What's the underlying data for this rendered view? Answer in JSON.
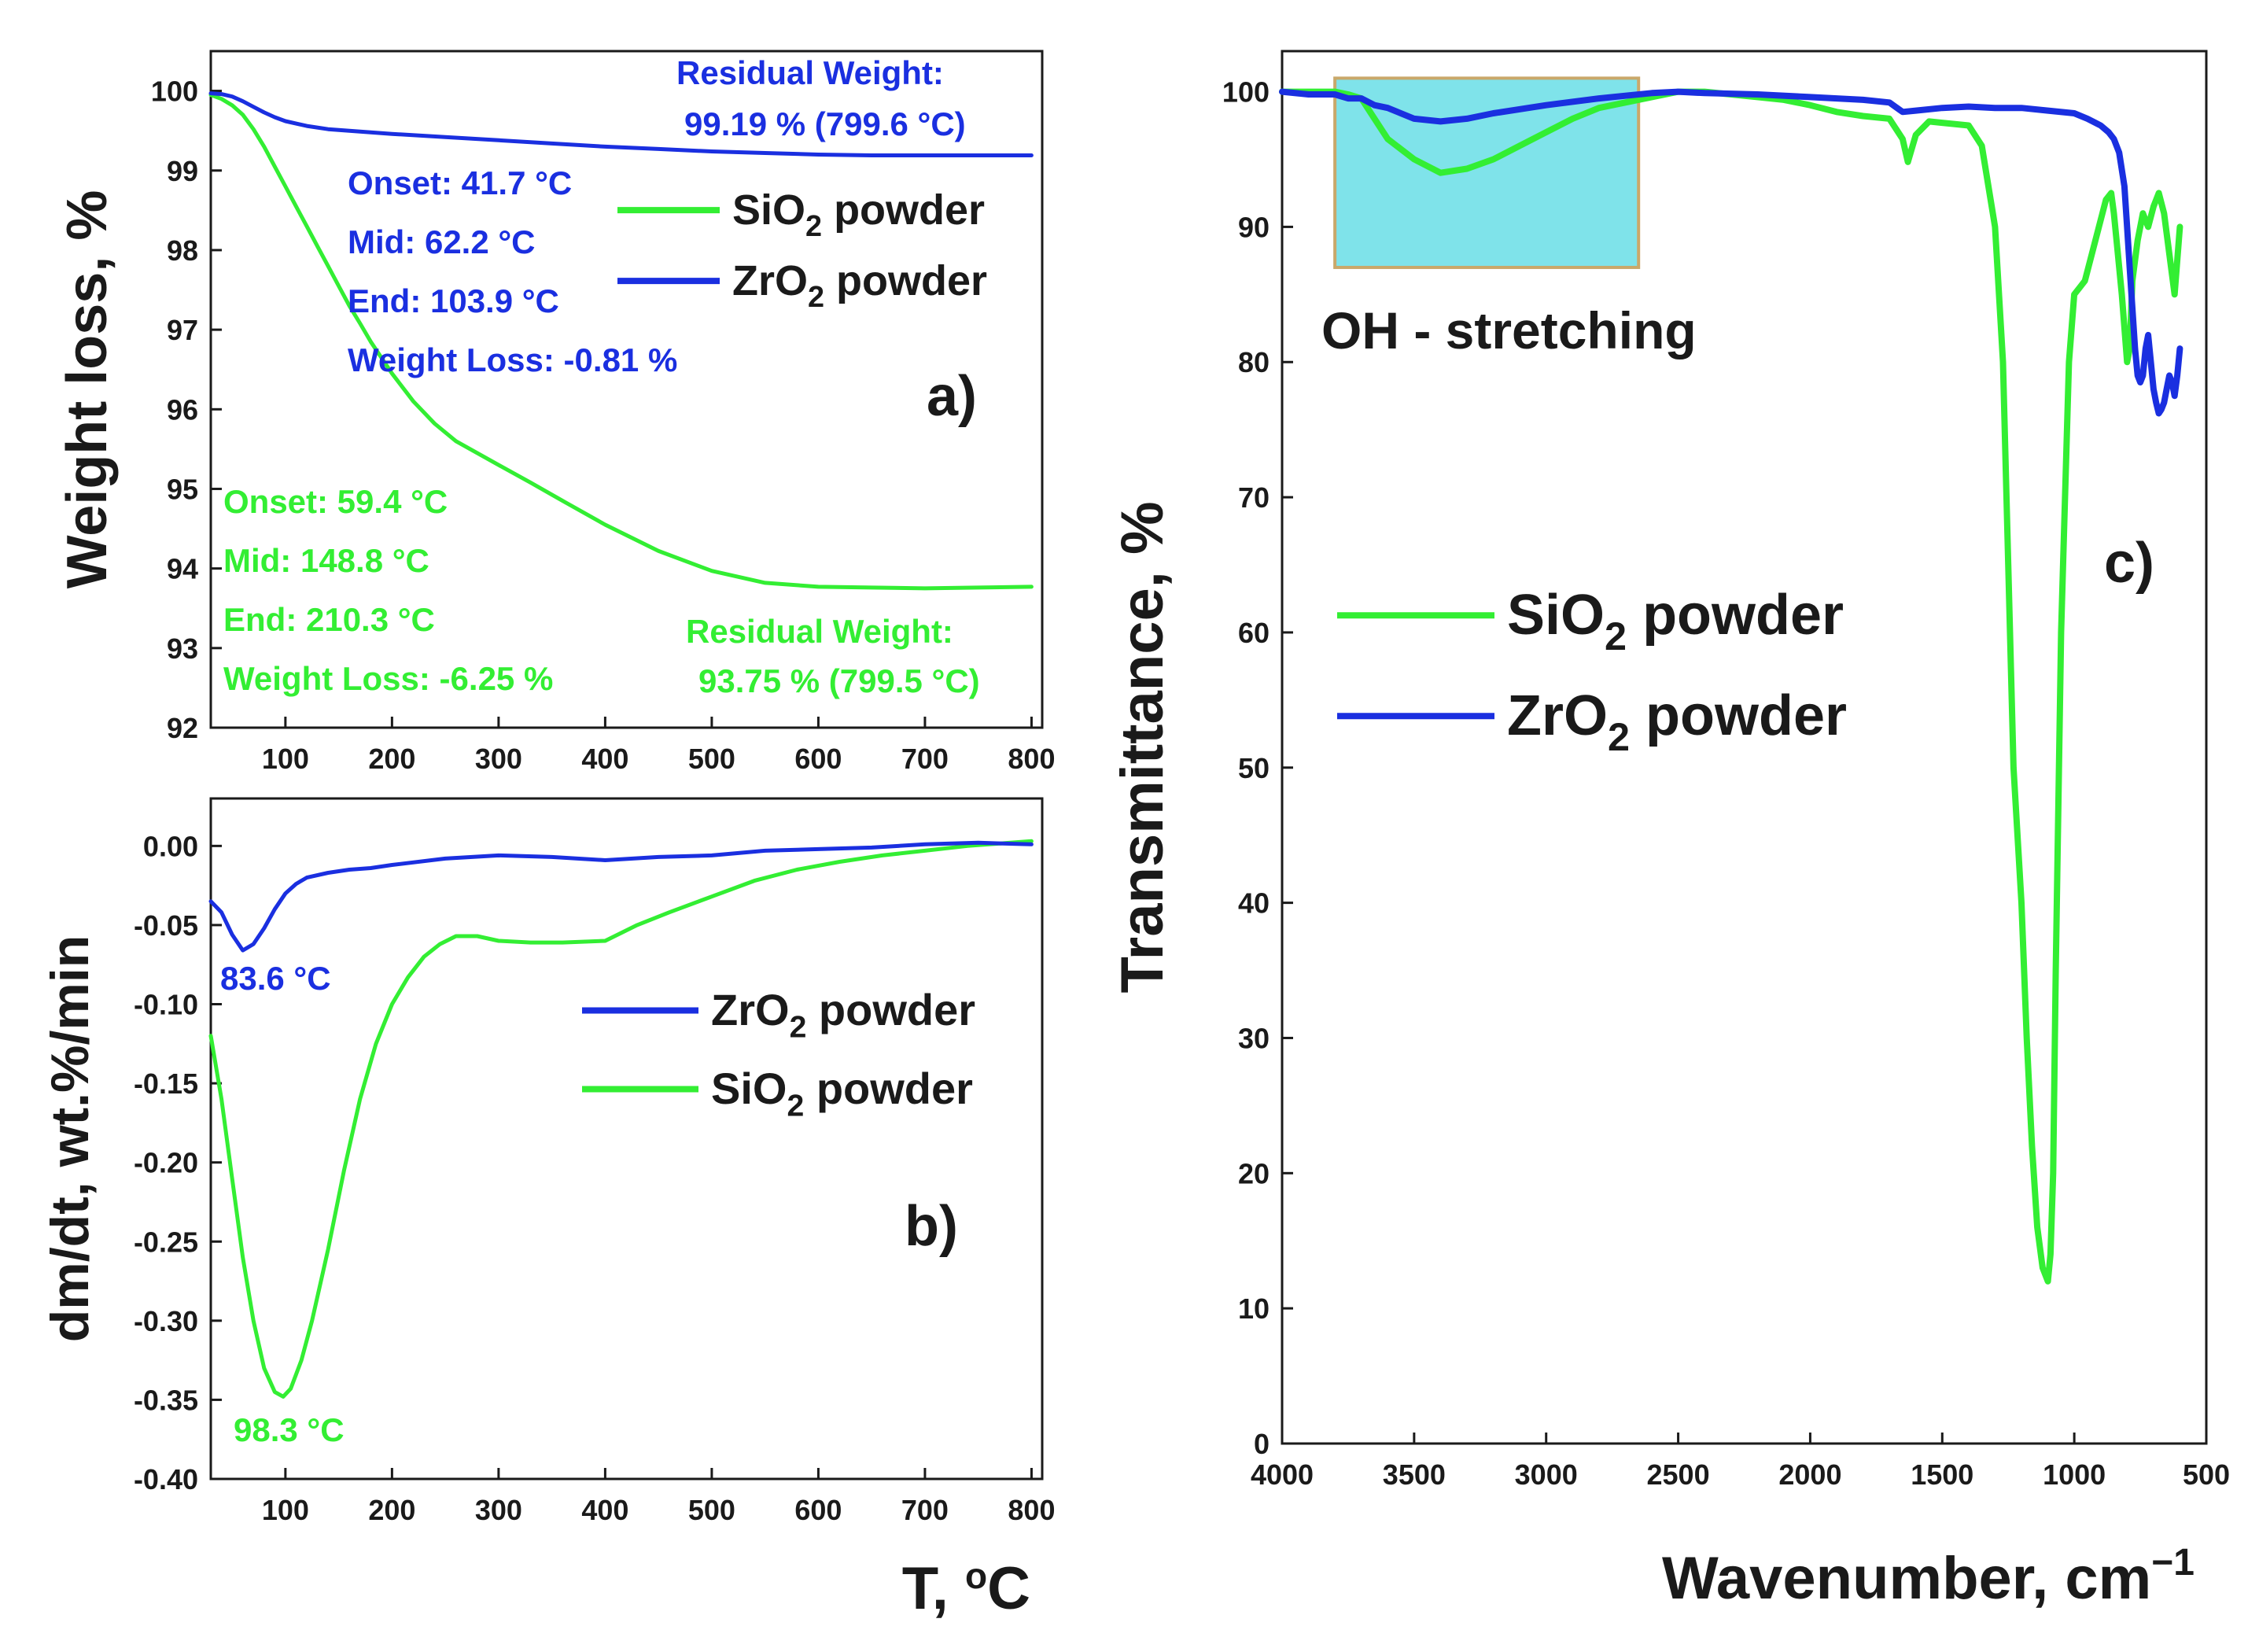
{
  "colors": {
    "sio2": "#33ee33",
    "zro2": "#1a2fe0",
    "axis": "#1a1a1a",
    "oh_box_fill": "#7fe3ea",
    "oh_box_border": "#c9a86a"
  },
  "chart_data": [
    {
      "id": "a",
      "type": "line",
      "panel_label": "a)",
      "ylabel": "Weight loss, %",
      "xlabel": "",
      "xlim": [
        30,
        810
      ],
      "ylim": [
        92,
        100.5
      ],
      "xticks": [
        100,
        200,
        300,
        400,
        500,
        600,
        700,
        800
      ],
      "yticks": [
        92,
        93,
        94,
        95,
        96,
        97,
        98,
        99,
        100
      ],
      "legend": {
        "entries": [
          {
            "series": "SiO2",
            "text": "SiO",
            "sub": "2",
            "rest": " powder"
          },
          {
            "series": "ZrO2",
            "text": "ZrO",
            "sub": "2",
            "rest": " powder"
          }
        ],
        "placement": "top-right"
      },
      "series": [
        {
          "name": "SiO2",
          "color_key": "sio2",
          "x": [
            30,
            40,
            50,
            60,
            70,
            80,
            90,
            100,
            110,
            120,
            130,
            140,
            150,
            160,
            170,
            180,
            190,
            200,
            220,
            240,
            260,
            280,
            300,
            330,
            360,
            400,
            450,
            500,
            550,
            600,
            650,
            700,
            750,
            800
          ],
          "y": [
            99.95,
            99.9,
            99.82,
            99.7,
            99.52,
            99.3,
            99.05,
            98.8,
            98.55,
            98.3,
            98.05,
            97.8,
            97.55,
            97.3,
            97.08,
            96.85,
            96.65,
            96.45,
            96.1,
            95.82,
            95.6,
            95.45,
            95.3,
            95.08,
            94.85,
            94.55,
            94.22,
            93.97,
            93.82,
            93.77,
            93.76,
            93.75,
            93.76,
            93.77
          ]
        },
        {
          "name": "ZrO2",
          "color_key": "zro2",
          "x": [
            30,
            40,
            50,
            60,
            70,
            80,
            90,
            100,
            120,
            140,
            160,
            180,
            200,
            250,
            300,
            350,
            400,
            450,
            500,
            550,
            600,
            650,
            700,
            750,
            800
          ],
          "y": [
            99.97,
            99.96,
            99.93,
            99.87,
            99.8,
            99.73,
            99.67,
            99.62,
            99.56,
            99.52,
            99.5,
            99.48,
            99.46,
            99.42,
            99.38,
            99.34,
            99.3,
            99.27,
            99.24,
            99.22,
            99.2,
            99.19,
            99.19,
            99.19,
            99.19
          ]
        }
      ],
      "annotations": {
        "zro2": {
          "residual_title": "Residual Weight:",
          "residual_value": "99.19 % (799.6 °C)",
          "onset": "Onset: 41.7 °C",
          "mid": "Mid: 62.2 °C",
          "end": "End: 103.9 °C",
          "loss": "Weight Loss: -0.81 %"
        },
        "sio2": {
          "onset": "Onset: 59.4 °C",
          "mid": "Mid: 148.8 °C",
          "end": "End: 210.3 °C",
          "loss": "Weight Loss: -6.25 %",
          "residual_title": "Residual Weight:",
          "residual_value": "93.75 % (799.5 °C)"
        }
      }
    },
    {
      "id": "b",
      "type": "line",
      "panel_label": "b)",
      "ylabel": "dm/dt,  wt.%/min",
      "xlabel": "T, ",
      "xlabel_unit": "o",
      "xlabel_rest": "C",
      "xlim": [
        30,
        810
      ],
      "ylim": [
        -0.4,
        0.03
      ],
      "xticks": [
        100,
        200,
        300,
        400,
        500,
        600,
        700,
        800
      ],
      "yticks": [
        -0.4,
        -0.35,
        -0.3,
        -0.25,
        -0.2,
        -0.15,
        -0.1,
        -0.05,
        0.0
      ],
      "ytick_labels": [
        "-0.40",
        "-0.35",
        "-0.30",
        "-0.25",
        "-0.20",
        "-0.15",
        "-0.10",
        "-0.05",
        "0.00"
      ],
      "legend": {
        "entries": [
          {
            "series": "ZrO2",
            "text": "ZrO",
            "sub": "2",
            "rest": " powder"
          },
          {
            "series": "SiO2",
            "text": "SiO",
            "sub": "2",
            "rest": " powder"
          }
        ],
        "placement": "center-right"
      },
      "series": [
        {
          "name": "SiO2",
          "color_key": "sio2",
          "x": [
            30,
            40,
            50,
            60,
            70,
            80,
            90,
            98,
            105,
            115,
            125,
            140,
            155,
            170,
            185,
            200,
            215,
            230,
            245,
            260,
            280,
            300,
            330,
            360,
            400,
            430,
            460,
            500,
            540,
            580,
            620,
            660,
            700,
            740,
            780,
            800
          ],
          "y": [
            -0.12,
            -0.16,
            -0.21,
            -0.26,
            -0.3,
            -0.33,
            -0.345,
            -0.348,
            -0.343,
            -0.325,
            -0.3,
            -0.255,
            -0.205,
            -0.16,
            -0.125,
            -0.1,
            -0.083,
            -0.07,
            -0.062,
            -0.057,
            -0.057,
            -0.06,
            -0.061,
            -0.061,
            -0.06,
            -0.05,
            -0.042,
            -0.032,
            -0.022,
            -0.015,
            -0.01,
            -0.006,
            -0.003,
            0.0,
            0.002,
            0.003
          ]
        },
        {
          "name": "ZrO2",
          "color_key": "zro2",
          "x": [
            30,
            40,
            50,
            60,
            70,
            80,
            90,
            100,
            110,
            120,
            140,
            160,
            180,
            200,
            250,
            300,
            350,
            400,
            450,
            500,
            550,
            600,
            650,
            700,
            750,
            800
          ],
          "y": [
            -0.035,
            -0.042,
            -0.056,
            -0.066,
            -0.062,
            -0.052,
            -0.04,
            -0.03,
            -0.024,
            -0.02,
            -0.017,
            -0.015,
            -0.014,
            -0.012,
            -0.008,
            -0.006,
            -0.007,
            -0.009,
            -0.007,
            -0.006,
            -0.003,
            -0.002,
            -0.001,
            0.001,
            0.002,
            0.001
          ]
        }
      ],
      "annotations": {
        "zro2_peak": "83.6 °C",
        "sio2_peak": "98.3 °C"
      }
    },
    {
      "id": "c",
      "type": "line",
      "panel_label": "c)",
      "ylabel": "Transmittance, %",
      "xlabel": "Wavenumber, cm",
      "xlabel_sup": "−1",
      "xlim": [
        4000,
        500
      ],
      "ylim": [
        0,
        103
      ],
      "xticks": [
        4000,
        3500,
        3000,
        2500,
        2000,
        1500,
        1000,
        500
      ],
      "yticks": [
        0,
        10,
        20,
        30,
        40,
        50,
        60,
        70,
        80,
        90,
        100
      ],
      "legend": {
        "entries": [
          {
            "series": "SiO2",
            "text": "SiO",
            "sub": "2",
            "rest": " powder"
          },
          {
            "series": "ZrO2",
            "text": "ZrO",
            "sub": "2",
            "rest": " powder"
          }
        ],
        "placement": "center-left"
      },
      "highlight": {
        "label": "OH - stretching",
        "x_range": [
          3800,
          2650
        ],
        "y_range": [
          87,
          101
        ]
      },
      "series": [
        {
          "name": "SiO2",
          "color_key": "sio2",
          "x": [
            4000,
            3900,
            3800,
            3750,
            3700,
            3650,
            3600,
            3500,
            3400,
            3300,
            3200,
            3100,
            3000,
            2900,
            2800,
            2700,
            2600,
            2500,
            2400,
            2300,
            2200,
            2100,
            2000,
            1900,
            1800,
            1700,
            1650,
            1630,
            1600,
            1550,
            1500,
            1400,
            1350,
            1300,
            1270,
            1250,
            1230,
            1200,
            1180,
            1160,
            1140,
            1120,
            1100,
            1090,
            1080,
            1070,
            1050,
            1020,
            1000,
            980,
            960,
            940,
            920,
            900,
            880,
            860,
            850,
            840,
            820,
            800,
            790,
            780,
            760,
            740,
            720,
            700,
            680,
            660,
            640,
            620,
            600
          ],
          "y": [
            100,
            100,
            100,
            99.8,
            99.5,
            98,
            96.5,
            95,
            94,
            94.3,
            95,
            96,
            97,
            98,
            98.8,
            99.2,
            99.6,
            100,
            100,
            99.8,
            99.6,
            99.4,
            99,
            98.5,
            98.2,
            98,
            96.5,
            94.8,
            96.8,
            97.8,
            97.7,
            97.5,
            96,
            90,
            80,
            65,
            50,
            40,
            30,
            22,
            16,
            13,
            12,
            14,
            20,
            35,
            60,
            80,
            85,
            85.5,
            86,
            87.5,
            89,
            90.5,
            92,
            92.5,
            91,
            89,
            85,
            80,
            81,
            86,
            89,
            91,
            90,
            91.5,
            92.5,
            91,
            88,
            85,
            90
          ]
        },
        {
          "name": "ZrO2",
          "color_key": "zro2",
          "x": [
            4000,
            3900,
            3800,
            3750,
            3700,
            3650,
            3600,
            3500,
            3400,
            3300,
            3200,
            3000,
            2800,
            2600,
            2500,
            2400,
            2200,
            2000,
            1800,
            1700,
            1650,
            1600,
            1500,
            1400,
            1300,
            1200,
            1100,
            1000,
            950,
            900,
            870,
            850,
            830,
            810,
            800,
            790,
            780,
            770,
            760,
            750,
            740,
            730,
            720,
            710,
            700,
            690,
            680,
            670,
            660,
            650,
            640,
            630,
            620,
            610,
            600
          ],
          "y": [
            100,
            99.8,
            99.8,
            99.5,
            99.5,
            99,
            98.8,
            98,
            97.8,
            98,
            98.4,
            99,
            99.5,
            99.9,
            100,
            99.9,
            99.8,
            99.6,
            99.4,
            99.2,
            98.5,
            98.6,
            98.8,
            98.9,
            98.8,
            98.8,
            98.6,
            98.4,
            98,
            97.5,
            97,
            96.5,
            95.5,
            93,
            90,
            87,
            84,
            81,
            79,
            78.5,
            79,
            81,
            82,
            80,
            78,
            77,
            76.2,
            76.5,
            77,
            78,
            79,
            78.5,
            77.5,
            79,
            81
          ]
        }
      ]
    }
  ]
}
